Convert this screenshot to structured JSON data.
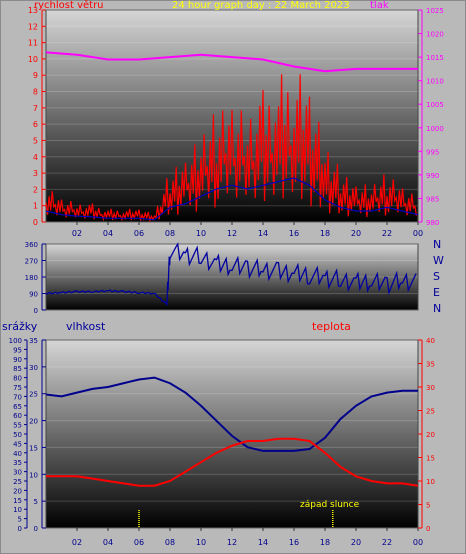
{
  "header": {
    "wind_label": "rychlost větru",
    "title": "24 hour graph day : 22 March 2023",
    "pressure_label": "tlak"
  },
  "compass": {
    "n": "N",
    "w": "W",
    "s": "S",
    "e": "E",
    "n2": "N"
  },
  "bottom_labels": {
    "rain": "srážky",
    "humidity": "vlhkost",
    "temp": "teplota",
    "sunset": "západ slunce"
  },
  "colors": {
    "wind": "#ff0000",
    "gust": "#0000c0",
    "pressure": "#ff00ff",
    "direction": "#0000a0",
    "humidity": "#00008c",
    "temp": "#ff0000",
    "sun": "#ffff00"
  },
  "x_ticks": [
    "02",
    "04",
    "06",
    "08",
    "10",
    "12",
    "14",
    "16",
    "18",
    "20",
    "22",
    "00"
  ],
  "chart_data": [
    {
      "type": "line",
      "title": "24 hour graph day : 22 March 2023",
      "left_axis": {
        "label": "rychlost větru",
        "ticks": [
          "0",
          "1",
          "2",
          "3",
          "4",
          "5",
          "6",
          "7",
          "8",
          "9",
          "10",
          "11",
          "12",
          "13"
        ],
        "range": [
          0,
          13
        ]
      },
      "right_axis": {
        "label": "tlak",
        "ticks": [
          "980",
          "985",
          "990",
          "995",
          "1000",
          "1005",
          "1010",
          "1015",
          "1020",
          "1025"
        ],
        "range": [
          980,
          1025
        ]
      },
      "series": [
        {
          "name": "tlak",
          "axis": "right",
          "x": [
            0,
            2,
            4,
            6,
            8,
            10,
            12,
            14,
            16,
            18,
            20,
            22,
            24
          ],
          "values": [
            1016,
            1015.5,
            1014.5,
            1014.5,
            1015,
            1015.5,
            1015,
            1014.5,
            1013,
            1012,
            1012.5,
            1012.5,
            1012.5
          ]
        },
        {
          "name": "rychlost větru",
          "axis": "left",
          "x": [
            0,
            1,
            2,
            3,
            4,
            5,
            6,
            7,
            8,
            9,
            10,
            11,
            12,
            13,
            14,
            15,
            16,
            17,
            18,
            19,
            20,
            21,
            22,
            23,
            24
          ],
          "values": [
            1.5,
            1,
            0.8,
            0.7,
            0.5,
            0.5,
            0.5,
            0.3,
            2,
            2.5,
            3.5,
            4.5,
            5,
            4.5,
            5,
            5.5,
            6,
            5,
            3,
            2,
            1.5,
            1.5,
            2,
            1.5,
            1
          ]
        }
      ]
    },
    {
      "type": "scatter",
      "axis": {
        "ticks": [
          "0",
          "90",
          "180",
          "270",
          "360"
        ],
        "range": [
          0,
          360
        ]
      },
      "x": [
        0,
        1,
        2,
        3,
        4,
        5,
        6,
        7,
        7.8,
        8,
        9,
        10,
        11,
        12,
        13,
        14,
        15,
        16,
        17,
        18,
        19,
        20,
        21,
        22,
        23,
        24
      ],
      "values": [
        90,
        95,
        100,
        100,
        105,
        100,
        95,
        90,
        30,
        330,
        300,
        290,
        250,
        240,
        230,
        220,
        210,
        200,
        190,
        175,
        165,
        150,
        155,
        140,
        160,
        150
      ]
    },
    {
      "type": "line",
      "left_axis": {
        "label": "srážky",
        "ticks": [
          "0",
          "5",
          "10",
          "15",
          "20",
          "25",
          "30",
          "35",
          "40",
          "45",
          "50",
          "55",
          "60",
          "65",
          "70",
          "75",
          "80",
          "85",
          "90",
          "95",
          "100"
        ],
        "range": [
          0,
          100
        ]
      },
      "left_axis2": {
        "label": "vlhkost",
        "ticks": [
          "0",
          "5",
          "10",
          "15",
          "20",
          "25",
          "30",
          "35"
        ],
        "range": [
          0,
          35
        ]
      },
      "right_axis": {
        "label": "teplota",
        "ticks": [
          "0",
          "5",
          "10",
          "15",
          "20",
          "25",
          "30",
          "35",
          "40"
        ],
        "range": [
          0,
          40
        ]
      },
      "series": [
        {
          "name": "vlhkost",
          "axis": "left",
          "x": [
            0,
            1,
            2,
            3,
            4,
            5,
            6,
            7,
            8,
            9,
            10,
            11,
            12,
            13,
            14,
            15,
            16,
            17,
            18,
            19,
            20,
            21,
            22,
            23,
            24
          ],
          "values": [
            71,
            70,
            72,
            74,
            75,
            77,
            79,
            80,
            77,
            72,
            65,
            57,
            49,
            43,
            41,
            41,
            41,
            42,
            48,
            58,
            65,
            70,
            72,
            73,
            73
          ]
        },
        {
          "name": "teplota",
          "axis": "right",
          "x": [
            0,
            1,
            2,
            3,
            4,
            5,
            6,
            7,
            8,
            9,
            10,
            11,
            12,
            13,
            14,
            15,
            16,
            17,
            18,
            19,
            20,
            21,
            22,
            23,
            24
          ],
          "values": [
            11,
            11,
            11,
            10.5,
            10,
            9.5,
            9,
            9,
            10,
            12,
            14,
            16,
            17.5,
            18.5,
            18.5,
            19,
            19,
            18.5,
            16,
            13,
            11,
            10,
            9.5,
            9.5,
            9
          ]
        }
      ],
      "sunset_marker_x": 18.5,
      "sunrise_marker_x": 6
    }
  ]
}
